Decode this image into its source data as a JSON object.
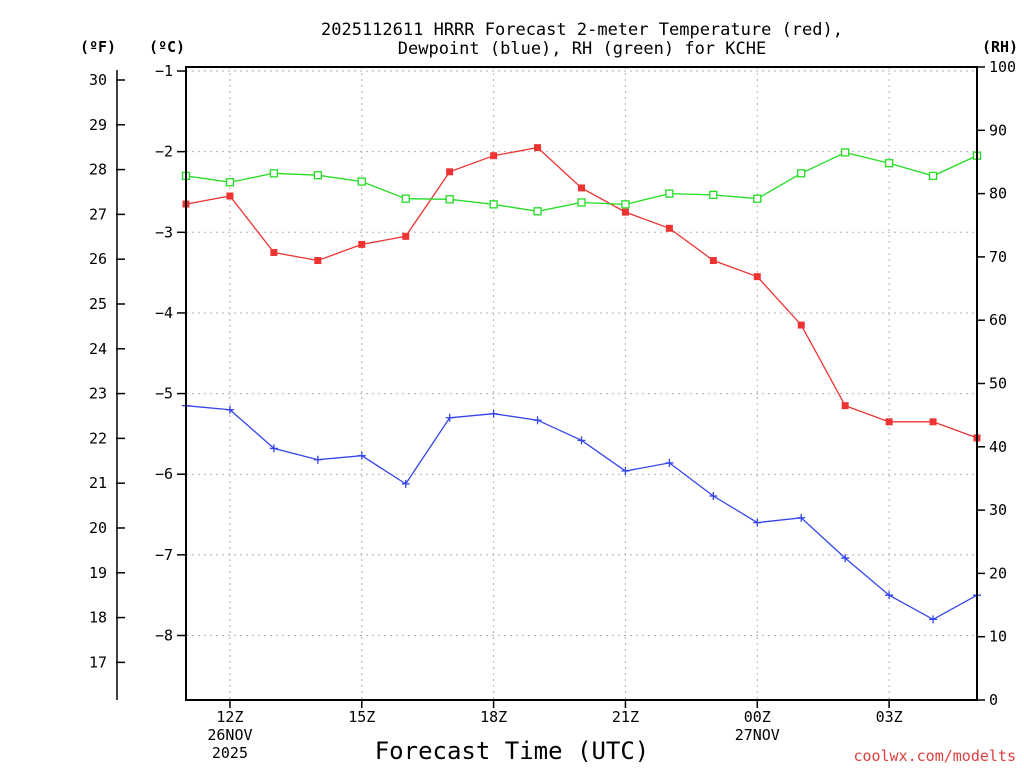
{
  "chart_data": {
    "type": "line",
    "title": [
      "2025112611 HRRR Forecast 2-meter Temperature (red),",
      "Dewpoint (blue), RH (green) for KCHE"
    ],
    "xlabel": "Forecast Time (UTC)",
    "credit": "coolwx.com/modelts",
    "units": {
      "fahrenheit": "(ºF)",
      "celsius": "(ºC)",
      "rh": "(RH)"
    },
    "x_hours": [
      11,
      12,
      13,
      14,
      15,
      16,
      17,
      18,
      19,
      20,
      21,
      22,
      23,
      24,
      25,
      26,
      27,
      28,
      29
    ],
    "xlim": [
      11,
      29
    ],
    "x_ticks": [
      {
        "hour": 12,
        "lines": [
          "12Z",
          "26NOV",
          "2025"
        ]
      },
      {
        "hour": 15,
        "lines": [
          "15Z"
        ]
      },
      {
        "hour": 18,
        "lines": [
          "18Z"
        ]
      },
      {
        "hour": 21,
        "lines": [
          "21Z"
        ]
      },
      {
        "hour": 24,
        "lines": [
          "00Z",
          "27NOV"
        ]
      },
      {
        "hour": 27,
        "lines": [
          "03Z"
        ]
      }
    ],
    "celsius_axis": {
      "ylim": [
        -8.8,
        -0.95
      ],
      "ticks": [
        -1,
        -2,
        -3,
        -4,
        -5,
        -6,
        -7,
        -8
      ],
      "tick_labels": [
        "−1",
        "−2",
        "−3",
        "−4",
        "−5",
        "−6",
        "−7",
        "−8"
      ]
    },
    "fahrenheit_axis": {
      "ticks": [
        17,
        18,
        19,
        20,
        21,
        22,
        23,
        24,
        25,
        26,
        27,
        28,
        29,
        30
      ],
      "tick_labels": [
        "17",
        "18",
        "19",
        "20",
        "21",
        "22",
        "23",
        "24",
        "25",
        "26",
        "27",
        "28",
        "29",
        "30"
      ]
    },
    "rh_axis": {
      "ylim": [
        0,
        100
      ],
      "ticks": [
        0,
        10,
        20,
        30,
        40,
        50,
        60,
        70,
        80,
        90,
        100
      ],
      "tick_labels": [
        "0",
        "10",
        "20",
        "30",
        "40",
        "50",
        "60",
        "70",
        "80",
        "90",
        "100"
      ]
    },
    "series": [
      {
        "name": "Temperature",
        "axis": "celsius",
        "color": "#ee3333",
        "marker": "filled-square",
        "values": [
          -2.65,
          -2.55,
          -3.25,
          -3.35,
          -3.15,
          -3.05,
          -2.25,
          -2.05,
          -1.95,
          -2.45,
          -2.75,
          -2.95,
          -3.35,
          -3.55,
          -4.15,
          -5.15,
          -5.35,
          -5.35,
          -5.55
        ]
      },
      {
        "name": "Dewpoint",
        "axis": "celsius",
        "color": "#3344ee",
        "marker": "plus",
        "values": [
          -5.15,
          -5.2,
          -5.68,
          -5.82,
          -5.77,
          -6.12,
          -5.3,
          -5.25,
          -5.33,
          -5.58,
          -5.96,
          -5.86,
          -6.27,
          -6.6,
          -6.54,
          -7.04,
          -7.5,
          -7.8,
          -7.5
        ]
      },
      {
        "name": "RH",
        "axis": "rh",
        "color": "#22dd22",
        "marker": "open-square",
        "values": [
          82.8,
          81.8,
          83.2,
          82.9,
          81.9,
          79.2,
          79.1,
          78.3,
          77.2,
          78.6,
          78.3,
          80.0,
          79.8,
          79.2,
          83.2,
          86.5,
          84.8,
          82.8,
          86.0
        ]
      }
    ]
  }
}
